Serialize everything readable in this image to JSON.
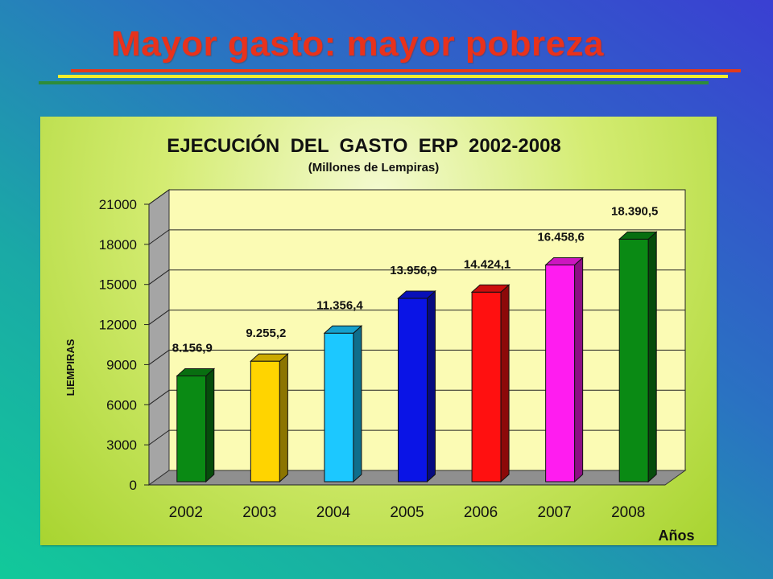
{
  "slide": {
    "title": "Mayor gasto: mayor pobreza"
  },
  "chart_data": {
    "type": "bar",
    "title": "EJECUCIÓN  DEL  GASTO  ERP  2002-2008",
    "subtitle": "(Millones de Lempiras)",
    "xlabel": "Años",
    "ylabel": "LIEMPIRAS",
    "categories": [
      "2002",
      "2003",
      "2004",
      "2005",
      "2006",
      "2007",
      "2008"
    ],
    "values": [
      8156.9,
      9255.2,
      11356.4,
      13956.9,
      14424.1,
      16458.6,
      18390.5
    ],
    "data_labels": [
      "8.156,9",
      "9.255,2",
      "11.356,4",
      "13.956,9",
      "14.424,1",
      "16.458,6",
      "18.390,5"
    ],
    "colors": [
      "#0a8a14",
      "#ffd400",
      "#1cc8ff",
      "#0a14e6",
      "#ff1010",
      "#ff1cf0",
      "#0a8a14"
    ],
    "yticks": [
      "0",
      "3000",
      "6000",
      "9000",
      "12000",
      "15000",
      "18000",
      "21000"
    ],
    "ylim": [
      0,
      21000
    ],
    "grid": true,
    "style": "3d-bar"
  }
}
